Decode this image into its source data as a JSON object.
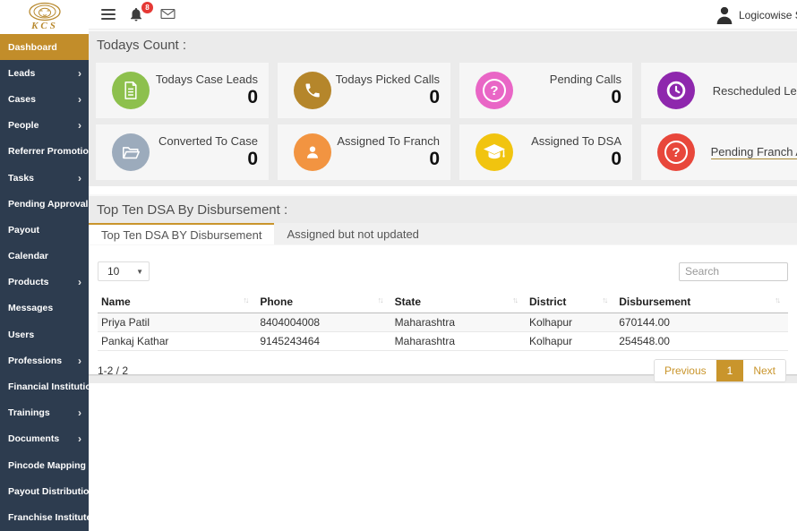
{
  "brand": {
    "name": "KCS"
  },
  "navbar": {
    "notification_badge": "8",
    "user_name": "Logicowise System"
  },
  "colors": {
    "accent_gold": "#c9952c",
    "sidebar_bg": "#2d3c4f",
    "sidebar_active_gold": "#c28d2a",
    "badge_red": "#e53935"
  },
  "sidebar": {
    "items": [
      {
        "label": "Dashboard",
        "active": true,
        "has_submenu": false
      },
      {
        "label": "Leads",
        "active": false,
        "has_submenu": true
      },
      {
        "label": "Cases",
        "active": false,
        "has_submenu": true
      },
      {
        "label": "People",
        "active": false,
        "has_submenu": true
      },
      {
        "label": "Referrer Promotion",
        "active": false,
        "has_submenu": false
      },
      {
        "label": "Tasks",
        "active": false,
        "has_submenu": true
      },
      {
        "label": "Pending Approvals",
        "active": false,
        "has_submenu": true
      },
      {
        "label": "Payout",
        "active": false,
        "has_submenu": false
      },
      {
        "label": "Calendar",
        "active": false,
        "has_submenu": false
      },
      {
        "label": "Products",
        "active": false,
        "has_submenu": true
      },
      {
        "label": "Messages",
        "active": false,
        "has_submenu": false
      },
      {
        "label": "Users",
        "active": false,
        "has_submenu": false
      },
      {
        "label": "Professions",
        "active": false,
        "has_submenu": true
      },
      {
        "label": "Financial Institutions",
        "active": false,
        "has_submenu": false
      },
      {
        "label": "Trainings",
        "active": false,
        "has_submenu": true
      },
      {
        "label": "Documents",
        "active": false,
        "has_submenu": true
      },
      {
        "label": "Pincode Mapping",
        "active": false,
        "has_submenu": false
      },
      {
        "label": "Payout Distribution",
        "active": false,
        "has_submenu": false
      },
      {
        "label": "Franchise Institute",
        "active": false,
        "has_submenu": false
      }
    ]
  },
  "counts": {
    "title": "Todays Count :",
    "cards": [
      {
        "label": "Todays Case Leads",
        "value": "0",
        "icon": "document-icon",
        "color": "#8dc04d",
        "link": false
      },
      {
        "label": "Todays Picked Calls",
        "value": "0",
        "icon": "phone-icon",
        "color": "#b5862b",
        "link": false
      },
      {
        "label": "Pending Calls",
        "value": "0",
        "icon": "question-icon",
        "color": "#e966c6",
        "link": false
      },
      {
        "label": "Rescheduled Lea",
        "value": "",
        "icon": "clock-icon",
        "color": "#8e27ad",
        "link": false
      },
      {
        "label": "Converted To Case",
        "value": "0",
        "icon": "folder-open-icon",
        "color": "#9cabbc",
        "link": false
      },
      {
        "label": "Assigned To Franch",
        "value": "0",
        "icon": "person-icon",
        "color": "#f29441",
        "link": false
      },
      {
        "label": "Assigned To DSA",
        "value": "0",
        "icon": "graduation-cap-icon",
        "color": "#f1c40f",
        "link": false
      },
      {
        "label": "Pending Franch A",
        "value": "",
        "icon": "question-icon",
        "color": "#e8473b",
        "link": true
      }
    ]
  },
  "dsa": {
    "title": "Top Ten DSA By Disbursement :",
    "tabs": [
      {
        "label": "Top Ten DSA BY Disbursement",
        "active": true
      },
      {
        "label": "Assigned but not updated",
        "active": false
      }
    ],
    "page_size": "10",
    "search_placeholder": "Search",
    "table": {
      "columns": [
        "Name",
        "Phone",
        "State",
        "District",
        "Disbursement"
      ],
      "rows": [
        [
          "Priya Patil",
          "8404004008",
          "Maharashtra",
          "Kolhapur",
          "670144.00"
        ],
        [
          "Pankaj Kathar",
          "9145243464",
          "Maharashtra",
          "Kolhapur",
          "254548.00"
        ]
      ]
    },
    "pagination": {
      "info": "1-2 / 2",
      "previous": "Previous",
      "current_page": "1",
      "next": "Next"
    }
  }
}
